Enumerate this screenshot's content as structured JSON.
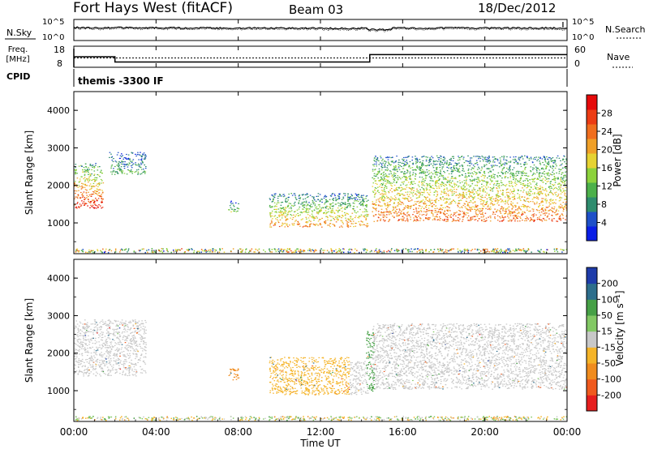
{
  "header": {
    "station": "Fort Hays West (fitACF)",
    "beam": "Beam 03",
    "date": "18/Dec/2012"
  },
  "side_labels": {
    "nsky": "N.Sky",
    "freq_line1": "Freq.",
    "freq_line2": "[MHz]",
    "cpid": "CPID",
    "nsearch": "N.Search",
    "nave": "Nave"
  },
  "cpid_value": "themis -3300 IF",
  "noise_ticks": {
    "top": "10^5",
    "bottom": "10^0"
  },
  "freq_ticks": [
    "18",
    "8"
  ],
  "nave_ticks": [
    "60",
    "0"
  ],
  "time_ticks": [
    "00:00",
    "04:00",
    "08:00",
    "12:00",
    "16:00",
    "20:00",
    "00:00"
  ],
  "xlabel": "Time UT",
  "range_ylabel": "Slant Range [km]",
  "range_ticks": [
    "1000",
    "2000",
    "3000",
    "4000"
  ],
  "power_colorbar": {
    "label": "Power [dB]",
    "ticks": [
      "4",
      "8",
      "12",
      "16",
      "20",
      "24",
      "28"
    ],
    "colors": [
      "#0a1ee6",
      "#1e50c8",
      "#2e8c6e",
      "#4cb04a",
      "#8cd23c",
      "#e6d232",
      "#f0a028",
      "#f06e1e",
      "#ec3c14",
      "#e60a0a"
    ]
  },
  "velocity_colorbar": {
    "label": "Velocity [m s⁻¹]",
    "ticks": [
      "-200",
      "-100",
      "-50",
      "-15",
      "15",
      "50",
      "100",
      "200"
    ],
    "colors": [
      "#e61e1e",
      "#f05a1e",
      "#f08c1e",
      "#f5b428",
      "#c8c8c8",
      "#82c864",
      "#46a046",
      "#2d6e8c",
      "#1e3caa"
    ]
  },
  "chart_data": {
    "type": "heatmap",
    "x_range_hours": [
      0,
      24
    ],
    "range_km_limits": [
      180,
      4500
    ],
    "frequency_mhz_series": [
      {
        "t": [
          0,
          2.0,
          2.0,
          14.4,
          14.4,
          24
        ],
        "value": [
          13,
          13,
          10.5,
          10.5,
          14,
          14
        ]
      }
    ],
    "power_echo_regions": [
      {
        "t_start": 0.0,
        "t_end": 1.4,
        "range_km": [
          1400,
          2600
        ],
        "level_db": 24
      },
      {
        "t_start": 1.7,
        "t_end": 3.5,
        "range_km": [
          2300,
          2900
        ],
        "level_db": 10
      },
      {
        "t_start": 7.5,
        "t_end": 8.0,
        "range_km": [
          1300,
          1600
        ],
        "level_db": 12
      },
      {
        "t_start": 9.5,
        "t_end": 14.3,
        "range_km": [
          900,
          1800
        ],
        "level_db": 18
      },
      {
        "t_start": 14.5,
        "t_end": 24.0,
        "range_km": [
          1050,
          2800
        ],
        "level_db": 20
      }
    ],
    "velocity_echo_regions": [
      {
        "t_start": 0.0,
        "t_end": 3.5,
        "range_km": [
          1400,
          2900
        ],
        "velocity_ms": 0
      },
      {
        "t_start": 7.5,
        "t_end": 8.0,
        "range_km": [
          1300,
          1600
        ],
        "velocity_ms": -60
      },
      {
        "t_start": 9.5,
        "t_end": 13.4,
        "range_km": [
          900,
          1900
        ],
        "velocity_ms": -30
      },
      {
        "t_start": 13.4,
        "t_end": 14.3,
        "range_km": [
          900,
          1800
        ],
        "velocity_ms": 0
      },
      {
        "t_start": 14.2,
        "t_end": 14.6,
        "range_km": [
          1000,
          2600
        ],
        "velocity_ms": 60
      },
      {
        "t_start": 14.5,
        "t_end": 24.0,
        "range_km": [
          1050,
          2800
        ],
        "velocity_ms": 0
      }
    ]
  }
}
